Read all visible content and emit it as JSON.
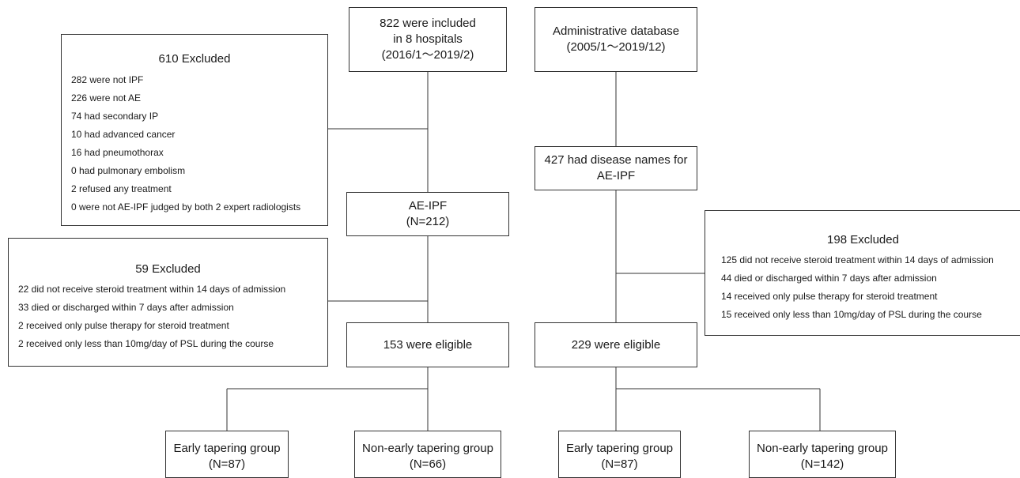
{
  "left": {
    "included": [
      "822 were included",
      "in 8 hospitals",
      "(2016/1～2019/2)"
    ],
    "excluded1": {
      "title": "610 Excluded",
      "items": [
        "282 were not IPF",
        "226 were not AE",
        "74 had secondary IP",
        "10 had advanced cancer",
        "16 had pneumothorax",
        "0 had pulmonary embolism",
        "2 refused any treatment",
        "0 were not AE-IPF judged by both 2 expert radiologists"
      ]
    },
    "aeipf": [
      "AE-IPF",
      "(N=212)"
    ],
    "excluded2": {
      "title": "59 Excluded",
      "items": [
        "22 did not receive steroid treatment within 14 days of admission",
        "33 died or discharged within 7 days after admission",
        "2 received only pulse therapy for steroid treatment",
        "2 received only less than 10mg/day of PSL during the course"
      ]
    },
    "eligible": "153 were eligible",
    "early": [
      "Early tapering group",
      "(N=87)"
    ],
    "nonearly": [
      "Non-early tapering group",
      "(N=66)"
    ]
  },
  "right": {
    "database": [
      "Administrative database",
      "(2005/1～2019/12)"
    ],
    "disease": [
      "427 had disease names for",
      "AE-IPF"
    ],
    "excluded": {
      "title": "198 Excluded",
      "items": [
        "125 did not receive steroid treatment within 14 days of admission",
        "44 died or discharged within 7 days after admission",
        "14 received only pulse therapy for steroid treatment",
        "15 received only less than 10mg/day of PSL during the course"
      ]
    },
    "eligible": "229 were eligible",
    "early": [
      "Early tapering group",
      "(N=87)"
    ],
    "nonearly": [
      "Non-early tapering group",
      "(N=142)"
    ]
  }
}
